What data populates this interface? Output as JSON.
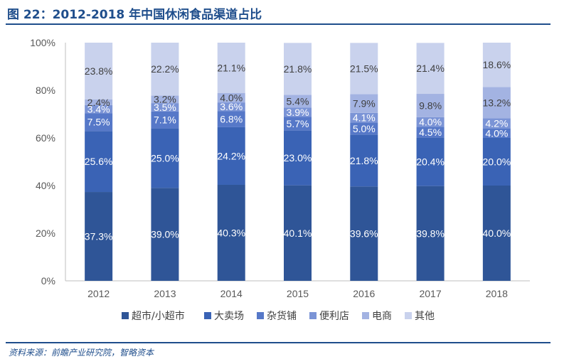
{
  "header": {
    "title": "图 22：2012-2018 年中国休闲食品渠道占比"
  },
  "footer": {
    "source": "资料来源：前瞻产业研究院，智略资本"
  },
  "chart_data": {
    "type": "bar",
    "stacked": true,
    "percent": true,
    "categories": [
      "2012",
      "2013",
      "2014",
      "2015",
      "2016",
      "2017",
      "2018"
    ],
    "ylim": [
      0,
      100
    ],
    "yticks": [
      "0%",
      "20%",
      "40%",
      "60%",
      "80%",
      "100%"
    ],
    "grid": false,
    "legend_position": "bottom",
    "series": [
      {
        "name": "超市/小超市",
        "color": "#2f5597",
        "label_color": "#ffffff",
        "values": [
          37.3,
          39.0,
          40.3,
          40.1,
          39.6,
          39.8,
          40.0
        ],
        "labels": [
          "37.3%",
          "39.0%",
          "40.3%",
          "40.1%",
          "39.6%",
          "39.8%",
          "40.0%"
        ]
      },
      {
        "name": "大卖场",
        "color": "#3a63b5",
        "label_color": "#ffffff",
        "values": [
          25.6,
          25.0,
          24.2,
          23.0,
          21.8,
          20.4,
          20.0
        ],
        "labels": [
          "25.6%",
          "25.0%",
          "24.2%",
          "23.0%",
          "21.8%",
          "20.4%",
          "20.0%"
        ]
      },
      {
        "name": "杂货铺",
        "color": "#5678c8",
        "label_color": "#ffffff",
        "values": [
          7.5,
          7.1,
          6.8,
          5.7,
          5.0,
          4.5,
          4.0
        ],
        "labels": [
          "7.5%",
          "7.1%",
          "6.8%",
          "5.7%",
          "5.0%",
          "4.5%",
          "4.0%"
        ]
      },
      {
        "name": "便利店",
        "color": "#7b94d6",
        "label_color": "#ffffff",
        "values": [
          3.4,
          3.5,
          3.6,
          3.9,
          4.1,
          4.0,
          4.2
        ],
        "labels": [
          "3.4%",
          "3.5%",
          "3.6%",
          "3.9%",
          "4.1%",
          "4.0%",
          "4.2%"
        ]
      },
      {
        "name": "电商",
        "color": "#a3b3e2",
        "label_color": "#404040",
        "values": [
          2.4,
          3.2,
          4.0,
          5.4,
          7.9,
          9.8,
          13.2
        ],
        "labels": [
          "2.4%",
          "3.2%",
          "4.0%",
          "5.4%",
          "7.9%",
          "9.8%",
          "13.2%"
        ]
      },
      {
        "name": "其他",
        "color": "#c9d2ed",
        "label_color": "#404040",
        "values": [
          23.8,
          22.2,
          21.1,
          21.8,
          21.5,
          21.4,
          18.6
        ],
        "labels": [
          "23.8%",
          "22.2%",
          "21.1%",
          "21.8%",
          "21.5%",
          "21.4%",
          "18.6%"
        ]
      }
    ]
  }
}
